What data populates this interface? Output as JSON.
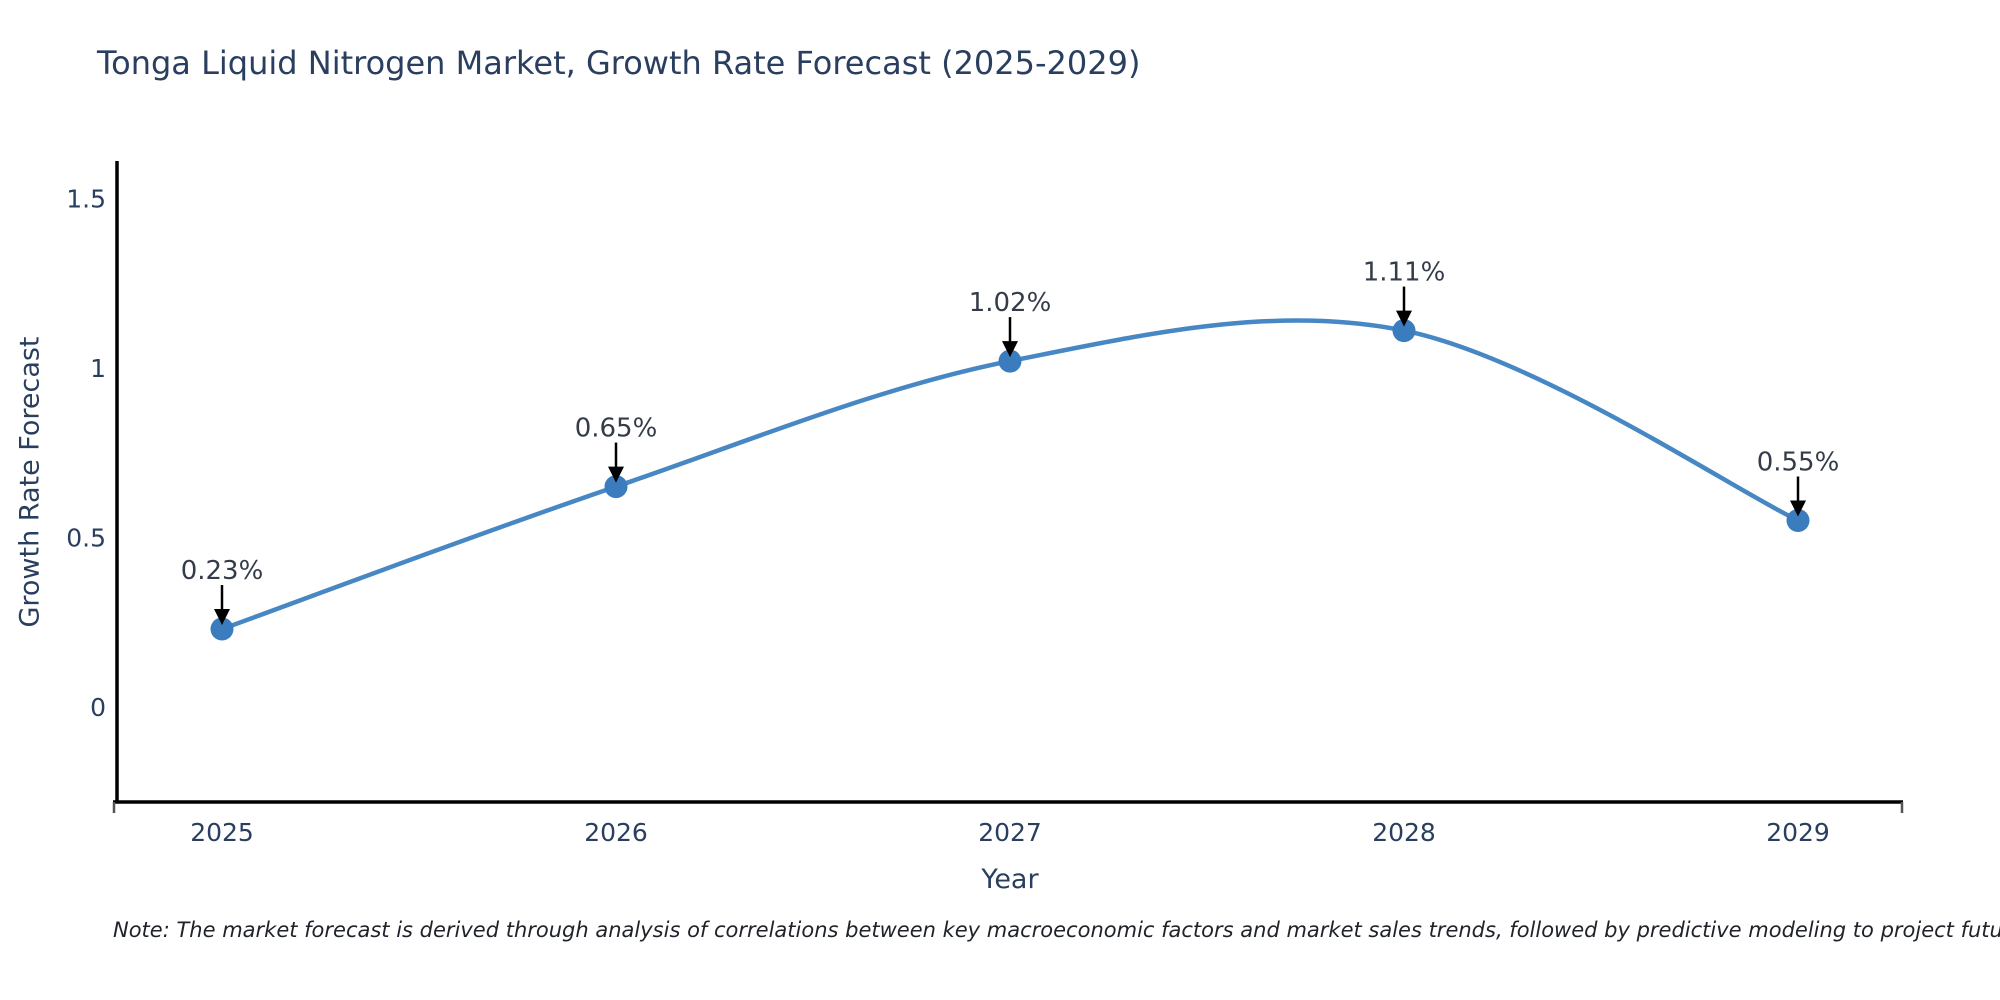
{
  "title": "Tonga Liquid Nitrogen Market, Growth Rate Forecast (2025-2029)",
  "xlabel": "Year",
  "ylabel": "Growth Rate Forecast",
  "note": "Note: The market forecast is derived through analysis of correlations between key macroeconomic factors and market sales trends, followed by predictive modeling to project future sales",
  "chart_data": {
    "type": "line",
    "title": "Tonga Liquid Nitrogen Market, Growth Rate Forecast (2025-2029)",
    "xlabel": "Year",
    "ylabel": "Growth Rate Forecast",
    "categories": [
      "2025",
      "2026",
      "2027",
      "2028",
      "2029"
    ],
    "series": [
      {
        "name": "Growth Rate Forecast",
        "values": [
          0.23,
          0.65,
          1.02,
          1.11,
          0.55
        ],
        "point_labels": [
          "0.23%",
          "0.65%",
          "1.02%",
          "1.11%",
          "0.55%"
        ]
      }
    ],
    "ytick_values": [
      0,
      0.5,
      1,
      1.5
    ],
    "ytick_labels": [
      "0",
      "0.5",
      "1",
      "1.5"
    ],
    "ylim": [
      -0.28,
      1.61
    ],
    "line_shape": "spline",
    "grid": false,
    "legend_position": "none",
    "annotations_have_arrows": true,
    "colors": {
      "line": "#4787c3",
      "marker": "#3a7cbe",
      "axis_line": "#000000",
      "tick_text": "#2a3f5f",
      "title_text": "#2a3f5f",
      "annotation_text": "#353c49",
      "arrow": "#000000",
      "background": "#ffffff"
    }
  }
}
